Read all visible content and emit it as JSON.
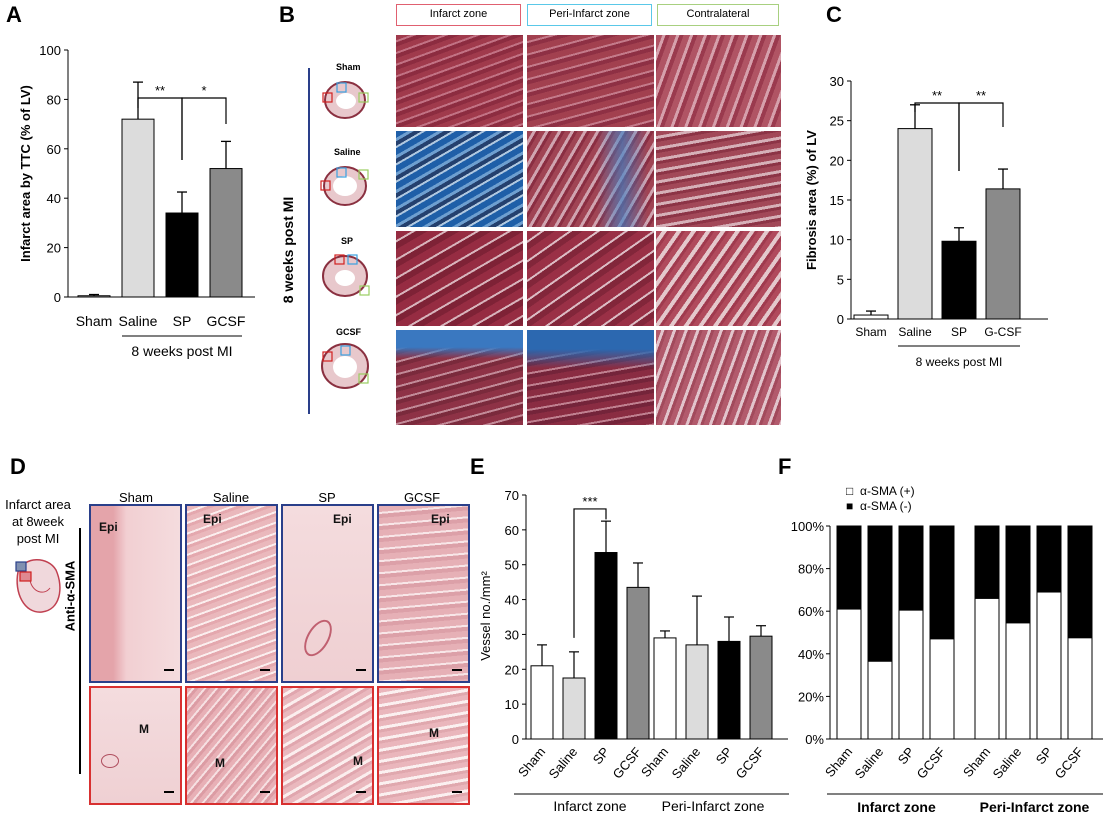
{
  "panels": {
    "A": {
      "letter": "A"
    },
    "B": {
      "letter": "B",
      "side_label": "8 weeks post MI",
      "zones": [
        "Infarct zone",
        "Peri-Infarct zone",
        "Contralateral"
      ],
      "zone_colors": [
        "#e06070",
        "#5ac8e8",
        "#a8d080"
      ],
      "rows": [
        "Sham",
        "Saline",
        "SP",
        "GCSF"
      ]
    },
    "C": {
      "letter": "C"
    },
    "D": {
      "letter": "D",
      "side_title": "Infarct area at 8week post MI",
      "stain_label": "Anti-α-SMA",
      "columns": [
        "Sham",
        "Saline",
        "SP",
        "GCSF"
      ],
      "top_row_label": "Epi",
      "bottom_row_label": "M",
      "top_border_color": "#2a3f8a",
      "bottom_border_color": "#d83030"
    },
    "E": {
      "letter": "E"
    },
    "F": {
      "letter": "F"
    }
  },
  "chart_data": [
    {
      "id": "A",
      "type": "bar",
      "categories": [
        "Sham",
        "Saline",
        "SP",
        "GCSF"
      ],
      "values": [
        0.5,
        72,
        34,
        52
      ],
      "errors": [
        0.5,
        15,
        8.5,
        11
      ],
      "colors": [
        "#ffffff",
        "#dcdcdc",
        "#000000",
        "#8a8a8a"
      ],
      "ylabel": "Infarct area by TTC (%  of LV)",
      "ylim": [
        0,
        100
      ],
      "yticks": [
        "0",
        "20",
        "40",
        "60",
        "80",
        "100"
      ],
      "group_label": "8 weeks post MI",
      "significance": [
        {
          "from": "Saline",
          "to": "SP",
          "label": "**"
        },
        {
          "from": "SP",
          "to": "GCSF",
          "label": "*"
        }
      ]
    },
    {
      "id": "C",
      "type": "bar",
      "categories": [
        "Sham",
        "Saline",
        "SP",
        "G-CSF"
      ],
      "values": [
        0.5,
        24,
        9.8,
        16.4
      ],
      "errors": [
        0.5,
        3,
        1.7,
        2.5
      ],
      "colors": [
        "#ffffff",
        "#dcdcdc",
        "#000000",
        "#8a8a8a"
      ],
      "ylabel": "Fibrosis area (%) of LV",
      "ylim": [
        0,
        30
      ],
      "yticks": [
        "0",
        "5",
        "10",
        "15",
        "20",
        "25",
        "30"
      ],
      "group_label": "8 weeks post MI",
      "significance": [
        {
          "from": "Saline",
          "to": "SP",
          "label": "**"
        },
        {
          "from": "SP",
          "to": "G-CSF",
          "label": "**"
        }
      ]
    },
    {
      "id": "E",
      "type": "bar",
      "groups": [
        "Infarct zone",
        "Peri-Infarct zone"
      ],
      "categories": [
        "Sham",
        "Saline",
        "SP",
        "GCSF"
      ],
      "series": [
        {
          "group": "Infarct zone",
          "values": [
            21,
            17.5,
            53.5,
            43.5
          ],
          "errors": [
            6,
            7.5,
            9,
            7
          ]
        },
        {
          "group": "Peri-Infarct zone",
          "values": [
            29,
            27,
            28,
            29.5
          ],
          "errors": [
            2,
            14,
            7,
            3
          ]
        }
      ],
      "colors": [
        "#ffffff",
        "#dcdcdc",
        "#000000",
        "#8a8a8a"
      ],
      "ylabel": "Vessel no./mm²",
      "ylim": [
        0,
        70
      ],
      "yticks": [
        "0",
        "10",
        "20",
        "30",
        "40",
        "50",
        "60",
        "70"
      ],
      "significance": [
        {
          "from": "Saline",
          "to": "SP",
          "label": "***"
        }
      ]
    },
    {
      "id": "F",
      "type": "bar",
      "stacked": true,
      "groups": [
        "Infarct zone",
        "Peri-Infarct zone"
      ],
      "categories": [
        "Sham",
        "Saline",
        "SP",
        "GCSF"
      ],
      "legend": [
        "α-SMA (+)",
        "α-SMA (-)"
      ],
      "legend_symbols": [
        "□",
        "■"
      ],
      "series": [
        {
          "group": "Infarct zone",
          "positive_pct": [
            61,
            36.5,
            60.5,
            47
          ]
        },
        {
          "group": "Peri-Infarct zone",
          "positive_pct": [
            66,
            54.5,
            69,
            47.5
          ]
        }
      ],
      "ylim": [
        0,
        100
      ],
      "yticks": [
        "0%",
        "20%",
        "40%",
        "60%",
        "80%",
        "100%"
      ]
    }
  ]
}
